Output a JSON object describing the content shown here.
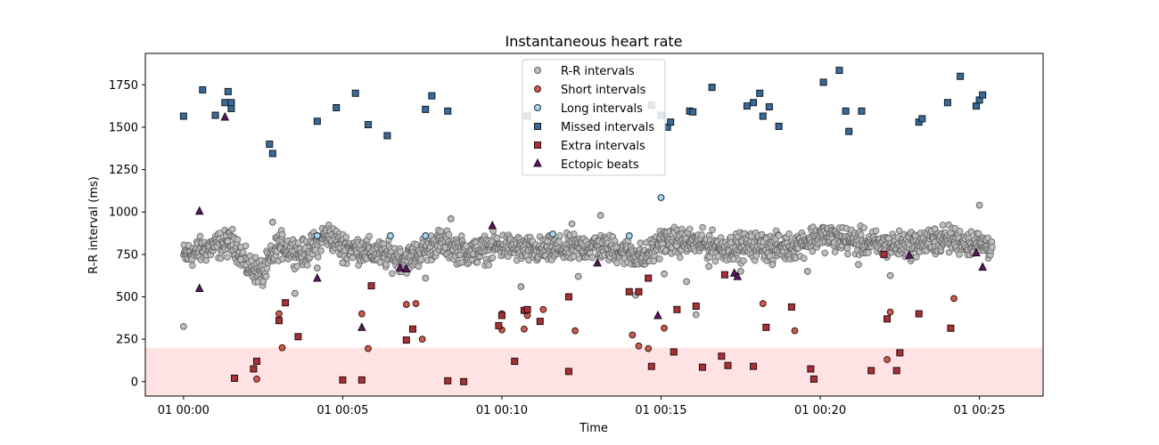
{
  "chart_data": {
    "type": "scatter",
    "title": "Instantaneous heart rate",
    "xlabel": "Time",
    "ylabel": "R-R interval (ms)",
    "x_unit": "minutes",
    "xlim": [
      -1.2,
      27.0
    ],
    "ylim": [
      -85,
      1935
    ],
    "x_ticks": [
      {
        "value": 0,
        "label": "01 00:00"
      },
      {
        "value": 5,
        "label": "01 00:05"
      },
      {
        "value": 10,
        "label": "01 00:10"
      },
      {
        "value": 15,
        "label": "01 00:15"
      },
      {
        "value": 20,
        "label": "01 00:20"
      },
      {
        "value": 25,
        "label": "01 00:25"
      }
    ],
    "y_ticks": [
      0,
      250,
      500,
      750,
      1000,
      1250,
      1500,
      1750
    ],
    "grid": false,
    "legend_position": "top-center",
    "shaded_band": {
      "y_from": -85,
      "y_to": 200,
      "color": "#ffe3e4"
    },
    "rr_background": {
      "x_start": 0.0,
      "x_end": 25.4,
      "mean": 790,
      "spread": 55,
      "segments": [
        [
          0,
          740
        ],
        [
          1.0,
          800
        ],
        [
          1.6,
          820
        ],
        [
          2.0,
          680
        ],
        [
          2.5,
          640
        ],
        [
          3.0,
          810
        ],
        [
          3.8,
          750
        ],
        [
          4.5,
          870
        ],
        [
          5.0,
          800
        ],
        [
          6.0,
          760
        ],
        [
          7.0,
          720
        ],
        [
          8.0,
          820
        ],
        [
          9.0,
          760
        ],
        [
          10.0,
          800
        ],
        [
          11.0,
          770
        ],
        [
          12.0,
          780
        ],
        [
          13.0,
          800
        ],
        [
          14.0,
          760
        ],
        [
          14.5,
          730
        ],
        [
          15.0,
          830
        ],
        [
          16.0,
          820
        ],
        [
          17.0,
          790
        ],
        [
          18.0,
          800
        ],
        [
          19.0,
          790
        ],
        [
          20.0,
          860
        ],
        [
          21.0,
          830
        ],
        [
          22.0,
          800
        ],
        [
          23.0,
          810
        ],
        [
          24.0,
          840
        ],
        [
          25.4,
          800
        ]
      ]
    },
    "series": [
      {
        "name": "R-R intervals",
        "marker": "circle",
        "fill": "#bdbdbd",
        "stroke": "#636363",
        "points": [
          [
            0.0,
            325
          ],
          [
            1.8,
            720
          ],
          [
            2.5,
            590
          ],
          [
            3.5,
            520
          ],
          [
            4.2,
            670
          ],
          [
            5.0,
            700
          ],
          [
            7.6,
            610
          ],
          [
            8.4,
            960
          ],
          [
            10.6,
            560
          ],
          [
            12.4,
            620
          ],
          [
            14.2,
            510
          ],
          [
            15.1,
            635
          ],
          [
            15.8,
            590
          ],
          [
            16.1,
            395
          ],
          [
            16.5,
            680
          ],
          [
            17.5,
            650
          ],
          [
            18.5,
            690
          ],
          [
            19.6,
            650
          ],
          [
            21.2,
            690
          ],
          [
            22.2,
            625
          ],
          [
            25.0,
            1040
          ],
          [
            12.2,
            930
          ],
          [
            13.1,
            980
          ],
          [
            2.8,
            940
          ],
          [
            23.6,
            900
          ]
        ]
      },
      {
        "name": "Short intervals",
        "marker": "circle",
        "fill": "#cd5c4e",
        "stroke": "#3a1515",
        "points": [
          [
            2.3,
            15
          ],
          [
            3.0,
            400
          ],
          [
            3.1,
            200
          ],
          [
            5.6,
            400
          ],
          [
            5.8,
            195
          ],
          [
            7.0,
            455
          ],
          [
            7.3,
            460
          ],
          [
            7.5,
            250
          ],
          [
            10.0,
            400
          ],
          [
            10.0,
            305
          ],
          [
            10.7,
            310
          ],
          [
            10.8,
            390
          ],
          [
            11.3,
            425
          ],
          [
            12.3,
            300
          ],
          [
            14.1,
            275
          ],
          [
            14.3,
            210
          ],
          [
            14.6,
            195
          ],
          [
            15.1,
            315
          ],
          [
            18.2,
            460
          ],
          [
            19.2,
            300
          ],
          [
            22.2,
            410
          ],
          [
            22.1,
            130
          ],
          [
            23.1,
            400
          ],
          [
            24.2,
            490
          ]
        ]
      },
      {
        "name": "Long intervals",
        "marker": "circle",
        "fill": "#a9d6ea",
        "stroke": "#15303f",
        "points": [
          [
            15.0,
            1085
          ],
          [
            6.5,
            860
          ],
          [
            7.6,
            860
          ],
          [
            11.6,
            870
          ],
          [
            14.0,
            860
          ],
          [
            4.2,
            860
          ]
        ]
      },
      {
        "name": "Missed intervals",
        "marker": "square",
        "fill": "#3b6a97",
        "stroke": "#0d1a26",
        "points": [
          [
            0.0,
            1565
          ],
          [
            0.6,
            1720
          ],
          [
            1.0,
            1570
          ],
          [
            1.3,
            1645
          ],
          [
            1.4,
            1710
          ],
          [
            1.5,
            1610
          ],
          [
            1.5,
            1645
          ],
          [
            2.7,
            1400
          ],
          [
            2.8,
            1345
          ],
          [
            4.2,
            1535
          ],
          [
            4.8,
            1615
          ],
          [
            5.4,
            1700
          ],
          [
            5.8,
            1515
          ],
          [
            6.4,
            1450
          ],
          [
            7.6,
            1605
          ],
          [
            7.8,
            1685
          ],
          [
            8.3,
            1595
          ],
          [
            10.8,
            1565
          ],
          [
            14.7,
            1630
          ],
          [
            15.2,
            1500
          ],
          [
            15.3,
            1530
          ],
          [
            15.0,
            1570
          ],
          [
            15.9,
            1595
          ],
          [
            16.0,
            1590
          ],
          [
            16.6,
            1735
          ],
          [
            17.7,
            1625
          ],
          [
            17.9,
            1645
          ],
          [
            18.1,
            1700
          ],
          [
            18.2,
            1565
          ],
          [
            18.4,
            1620
          ],
          [
            18.7,
            1505
          ],
          [
            20.1,
            1765
          ],
          [
            20.6,
            1835
          ],
          [
            20.8,
            1595
          ],
          [
            20.9,
            1475
          ],
          [
            21.3,
            1595
          ],
          [
            23.1,
            1530
          ],
          [
            23.2,
            1550
          ],
          [
            24.0,
            1645
          ],
          [
            24.4,
            1800
          ],
          [
            24.9,
            1625
          ],
          [
            25.0,
            1660
          ],
          [
            25.1,
            1690
          ]
        ]
      },
      {
        "name": "Extra intervals",
        "marker": "square",
        "fill": "#a63238",
        "stroke": "#2a0b0d",
        "points": [
          [
            1.6,
            20
          ],
          [
            2.2,
            75
          ],
          [
            2.3,
            120
          ],
          [
            3.0,
            360
          ],
          [
            3.2,
            465
          ],
          [
            3.6,
            265
          ],
          [
            5.0,
            10
          ],
          [
            5.6,
            10
          ],
          [
            5.9,
            565
          ],
          [
            7.0,
            245
          ],
          [
            7.2,
            310
          ],
          [
            8.3,
            5
          ],
          [
            8.8,
            0
          ],
          [
            9.9,
            330
          ],
          [
            10.0,
            390
          ],
          [
            10.4,
            120
          ],
          [
            10.7,
            420
          ],
          [
            10.8,
            425
          ],
          [
            11.2,
            355
          ],
          [
            12.1,
            500
          ],
          [
            12.1,
            60
          ],
          [
            14.0,
            530
          ],
          [
            14.3,
            530
          ],
          [
            14.6,
            610
          ],
          [
            14.7,
            90
          ],
          [
            15.4,
            175
          ],
          [
            15.5,
            425
          ],
          [
            16.1,
            445
          ],
          [
            16.3,
            85
          ],
          [
            16.9,
            150
          ],
          [
            17.0,
            630
          ],
          [
            17.1,
            95
          ],
          [
            17.9,
            90
          ],
          [
            18.3,
            320
          ],
          [
            19.1,
            440
          ],
          [
            19.7,
            75
          ],
          [
            19.8,
            15
          ],
          [
            21.6,
            65
          ],
          [
            22.0,
            750
          ],
          [
            22.1,
            370
          ],
          [
            22.4,
            65
          ],
          [
            22.5,
            170
          ],
          [
            23.1,
            400
          ],
          [
            24.1,
            315
          ]
        ]
      },
      {
        "name": "Ectopic beats",
        "marker": "triangle",
        "fill": "#5a1a5e",
        "stroke": "#1c051d",
        "points": [
          [
            0.5,
            1005
          ],
          [
            0.5,
            550
          ],
          [
            1.3,
            1560
          ],
          [
            4.2,
            610
          ],
          [
            5.6,
            320
          ],
          [
            6.8,
            670
          ],
          [
            7.0,
            665
          ],
          [
            9.7,
            920
          ],
          [
            13.0,
            700
          ],
          [
            14.9,
            390
          ],
          [
            17.3,
            640
          ],
          [
            17.4,
            620
          ],
          [
            24.9,
            760
          ],
          [
            25.1,
            675
          ],
          [
            22.8,
            745
          ]
        ]
      }
    ]
  }
}
